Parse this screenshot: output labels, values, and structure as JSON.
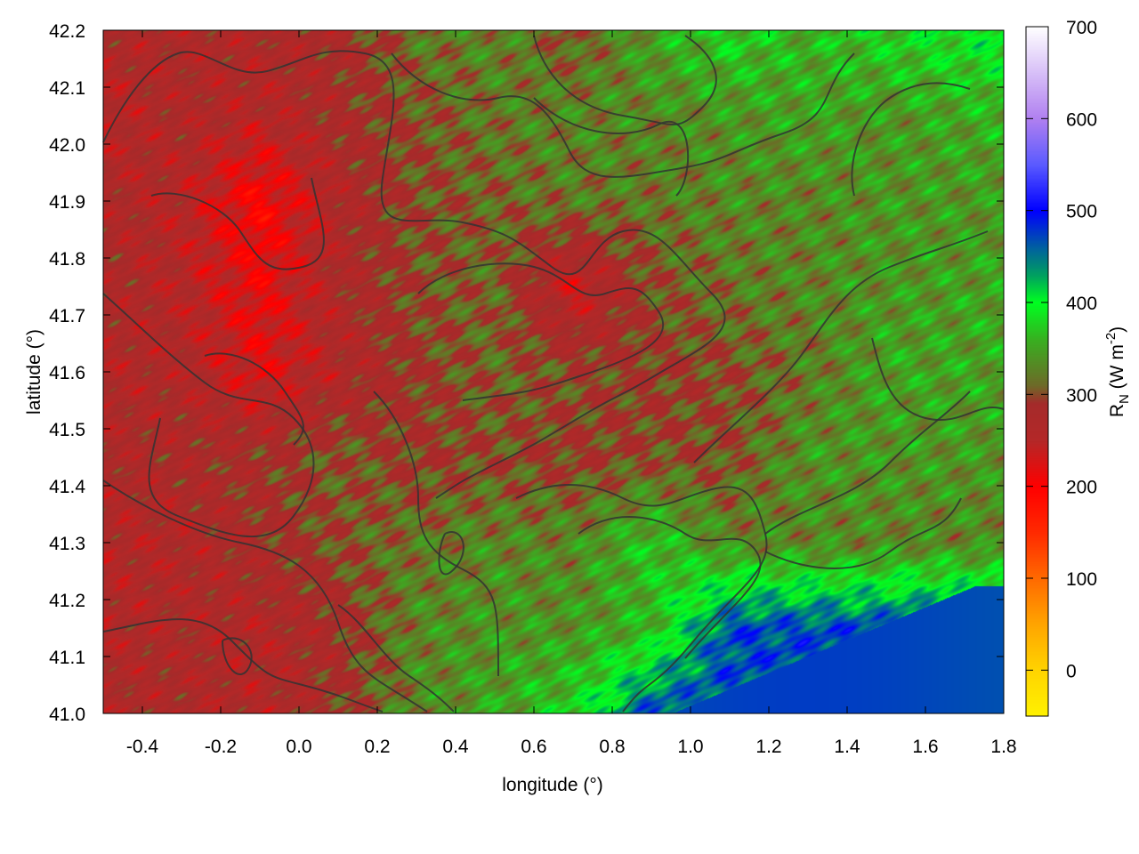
{
  "chart_data": {
    "type": "heatmap",
    "xlabel": "longitude (°)",
    "ylabel": "latitude (°)",
    "colorbar_label": "R",
    "colorbar_label_sub": "N",
    "colorbar_unit": "(W m",
    "colorbar_unit_sup": "-2",
    "colorbar_unit_end": ")",
    "xlim": [
      -0.5,
      1.8
    ],
    "ylim": [
      41.0,
      42.2
    ],
    "clim": [
      -50,
      700
    ],
    "xticks": [
      "-0.4",
      "-0.2",
      "0.0",
      "0.2",
      "0.4",
      "0.6",
      "0.8",
      "1.0",
      "1.2",
      "1.4",
      "1.6",
      "1.8"
    ],
    "yticks": [
      "41.0",
      "41.1",
      "41.2",
      "41.3",
      "41.4",
      "41.5",
      "41.6",
      "41.7",
      "41.8",
      "41.9",
      "42.0",
      "42.1",
      "42.2"
    ],
    "cticks": [
      "0",
      "100",
      "200",
      "300",
      "400",
      "500",
      "600",
      "700"
    ],
    "grid": false,
    "contours": true,
    "colormap": [
      [
        -50,
        "#fff200"
      ],
      [
        0,
        "#ffd400"
      ],
      [
        50,
        "#ffa500"
      ],
      [
        100,
        "#ff6a00"
      ],
      [
        150,
        "#ff2a00"
      ],
      [
        200,
        "#ff0000"
      ],
      [
        250,
        "#b42828"
      ],
      [
        290,
        "#a52a2a"
      ],
      [
        310,
        "#6e6a28"
      ],
      [
        360,
        "#38b020"
      ],
      [
        400,
        "#00ff20"
      ],
      [
        430,
        "#00a060"
      ],
      [
        460,
        "#0060a0"
      ],
      [
        500,
        "#0000ff"
      ],
      [
        550,
        "#5a5aff"
      ],
      [
        600,
        "#b080f0"
      ],
      [
        700,
        "#ffffff"
      ]
    ],
    "grid_lon": [
      -0.5,
      -0.3,
      -0.1,
      0.1,
      0.3,
      0.5,
      0.7,
      0.9,
      1.1,
      1.3,
      1.5,
      1.8
    ],
    "grid_lat": [
      42.2,
      42.05,
      41.9,
      41.75,
      41.6,
      41.45,
      41.3,
      41.15,
      41.0
    ],
    "values": [
      [
        270,
        265,
        270,
        275,
        320,
        330,
        300,
        350,
        380,
        360,
        380,
        400
      ],
      [
        250,
        270,
        255,
        280,
        300,
        320,
        330,
        330,
        340,
        350,
        340,
        360
      ],
      [
        270,
        255,
        200,
        265,
        300,
        310,
        320,
        320,
        330,
        330,
        340,
        340
      ],
      [
        275,
        255,
        215,
        270,
        300,
        310,
        230,
        300,
        320,
        330,
        340,
        350
      ],
      [
        260,
        265,
        225,
        260,
        290,
        310,
        300,
        290,
        300,
        320,
        350,
        350
      ],
      [
        270,
        275,
        285,
        305,
        290,
        300,
        290,
        300,
        300,
        340,
        340,
        340
      ],
      [
        260,
        260,
        280,
        300,
        320,
        330,
        330,
        370,
        330,
        330,
        330,
        330
      ],
      [
        260,
        270,
        260,
        280,
        330,
        340,
        340,
        360,
        470,
        470,
        470,
        470
      ],
      [
        270,
        270,
        260,
        290,
        330,
        350,
        380,
        470,
        470,
        470,
        470,
        470
      ]
    ],
    "sea_value": 470
  }
}
